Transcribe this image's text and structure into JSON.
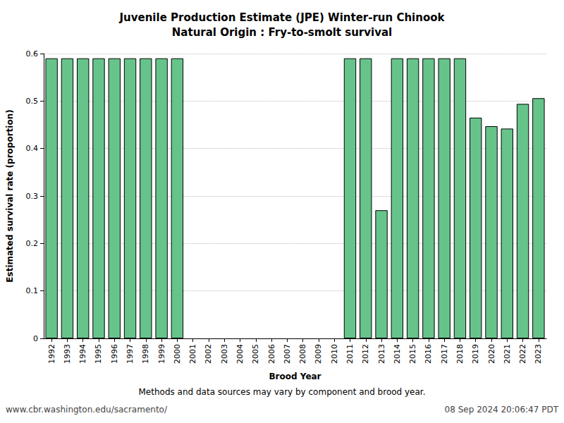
{
  "chart_data": {
    "type": "bar",
    "title": "Juvenile Production Estimate (JPE) Winter-run Chinook",
    "subtitle": "Natural Origin : Fry-to-smolt survival",
    "x_label": "Brood Year",
    "y_label": "Estimated survival rate (proportion)",
    "annotations": [
      "Methods and data sources may vary by component and brood year.",
      "www.cbr.washington.edu/sacramento/",
      "08 Sep 2024 20:06:47 PDT"
    ],
    "categories": [
      "1992",
      "1993",
      "1994",
      "1995",
      "1996",
      "1997",
      "1998",
      "1999",
      "2000",
      "2001",
      "2002",
      "2003",
      "2004",
      "2005",
      "2006",
      "2007",
      "2008",
      "2009",
      "2010",
      "2011",
      "2012",
      "2013",
      "2014",
      "2015",
      "2016",
      "2017",
      "2018",
      "2019",
      "2020",
      "2021",
      "2022",
      "2023"
    ],
    "values": [
      0.59,
      0.59,
      0.59,
      0.59,
      0.59,
      0.59,
      0.59,
      0.59,
      0.59,
      null,
      null,
      null,
      null,
      null,
      null,
      null,
      null,
      null,
      null,
      0.59,
      0.59,
      0.27,
      0.59,
      0.59,
      0.59,
      0.59,
      0.59,
      0.465,
      0.447,
      0.442,
      0.494,
      0.506
    ],
    "color": "#66c48a",
    "ylim": [
      0,
      0.6
    ],
    "yticks": [
      0,
      0.1,
      0.2,
      0.3,
      0.4,
      0.5,
      0.6
    ],
    "grid": true
  }
}
